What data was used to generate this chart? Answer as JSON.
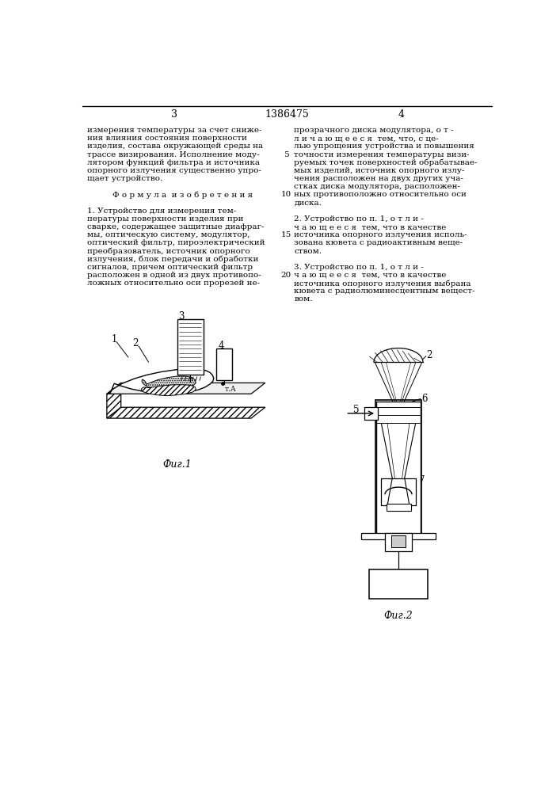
{
  "page_number_left": "3",
  "page_number_center": "1386475",
  "page_number_right": "4",
  "background_color": "#ffffff",
  "text_color": "#000000",
  "font_size_body": 7.5,
  "font_size_label": 8,
  "left_column_text": [
    "измерения температуры за счет сниже-",
    "ния влияния состояния поверхности",
    "изделия, состава окружающей среды на",
    "трассе визирования. Исполнение моду-",
    "лятором функций фильтра и источника",
    "опорного излучения существенно упро-",
    "щает устройство.",
    "",
    "Ф о р м у л а  и з о б р е т е н и я",
    "",
    "1. Устройство для измерения тем-",
    "пературы поверхности изделия при",
    "сварке, содержащее защитные диафраг-",
    "мы, оптическую систему, модулятор,",
    "оптический фильтр, пироэлектрический",
    "преобразователь, источник опорного",
    "излучения, блок передачи и обработки",
    "сигналов, причем оптический фильтр",
    "расположен в одной из двух противопо-",
    "ложных относительно оси прорезей не-"
  ],
  "right_column_text": [
    "прозрачного диска модулятора, о т -",
    "л и ч а ю щ е е с я  тем, что, с це-",
    "лью упрощения устройства и повышения",
    "точности измерения температуры визи-",
    "руемых точек поверхностей обрабатывае-",
    "мых изделий, источник опорного излу-",
    "чения расположен на двух других уча-",
    "стках диска модулятора, расположен-",
    "ных противоположно относительно оси",
    "диска.",
    "",
    "2. Устройство по п. 1, о т л и -",
    "ч а ю щ е е с я  тем, что в качестве",
    "источника опорного излучения исполь-",
    "зована кювета с радиоактивным веще-",
    "ством.",
    "",
    "3. Устройство по п. 1, о т л и -",
    "ч а ю щ е е с я  тем, что в качестве",
    "источника опорного излучения выбрана",
    "кювета с радиолюминесцентным вещест-",
    "вом."
  ],
  "fig1_label": "Фиг.1",
  "fig2_label": "Фиг.2",
  "line_number": "5"
}
